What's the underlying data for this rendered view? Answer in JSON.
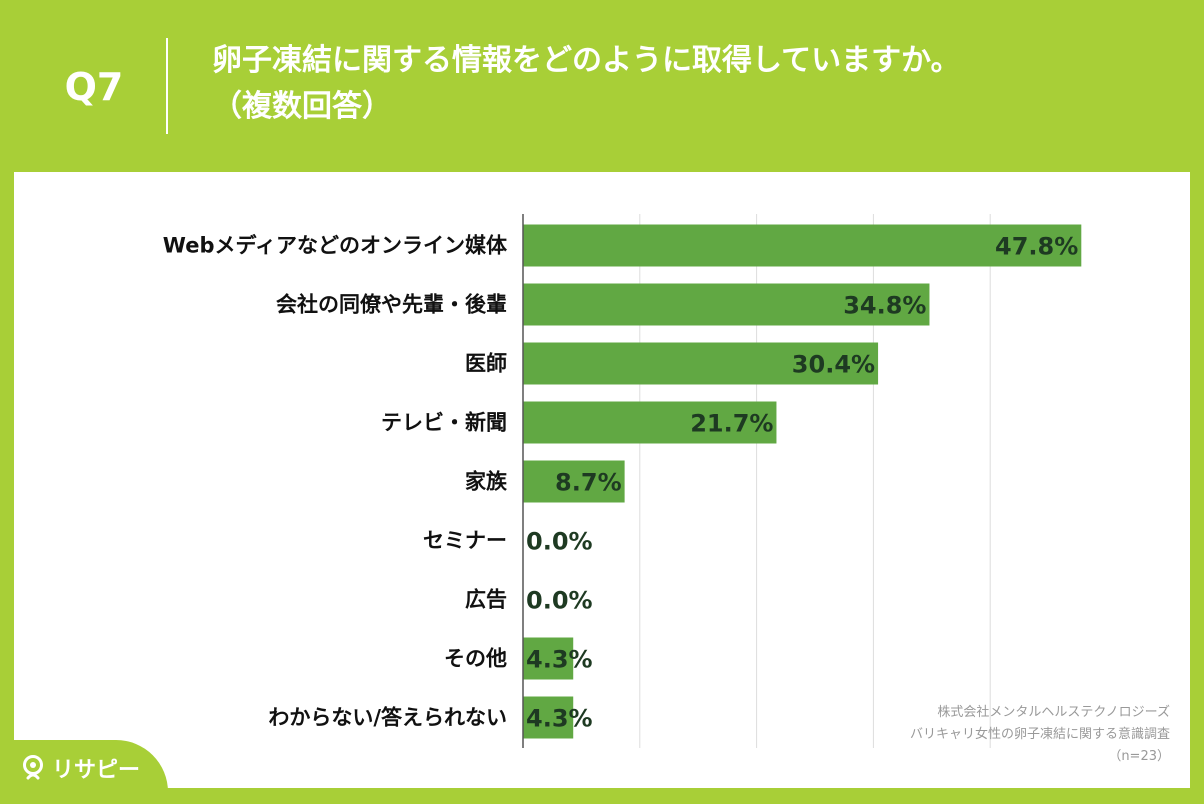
{
  "header": {
    "question_number": "Q7",
    "title_line1": "卵子凍結に関する情報をどのように取得していますか。",
    "title_line2": "（複数回答）"
  },
  "credit": {
    "line1": "株式会社メンタルヘルステクノロジーズ",
    "line2": "バリキャリ女性の卵子凍結に関する意識調査",
    "line3": "（n=23）"
  },
  "logo": {
    "text": "リサピー",
    "icon": "pin-icon"
  },
  "colors": {
    "background": "#a8cf37",
    "bar": "#61a843",
    "value_text": "#1e3a22",
    "label_text": "#111111",
    "grid": "#dddddd",
    "axis": "#555555"
  },
  "chart_data": {
    "type": "bar",
    "orientation": "horizontal",
    "unit": "%",
    "categories": [
      "Webメディアなどのオンライン媒体",
      "会社の同僚や先輩・後輩",
      "医師",
      "テレビ・新聞",
      "家族",
      "セミナー",
      "広告",
      "その他",
      "わからない/答えられない"
    ],
    "values": [
      47.8,
      34.8,
      30.4,
      21.7,
      8.7,
      0.0,
      0.0,
      4.3,
      4.3
    ],
    "value_labels": [
      "47.8%",
      "34.8%",
      "30.4%",
      "21.7%",
      "8.7%",
      "0.0%",
      "0.0%",
      "4.3%",
      "4.3%"
    ],
    "xlim": [
      0,
      50
    ],
    "grid": true
  }
}
